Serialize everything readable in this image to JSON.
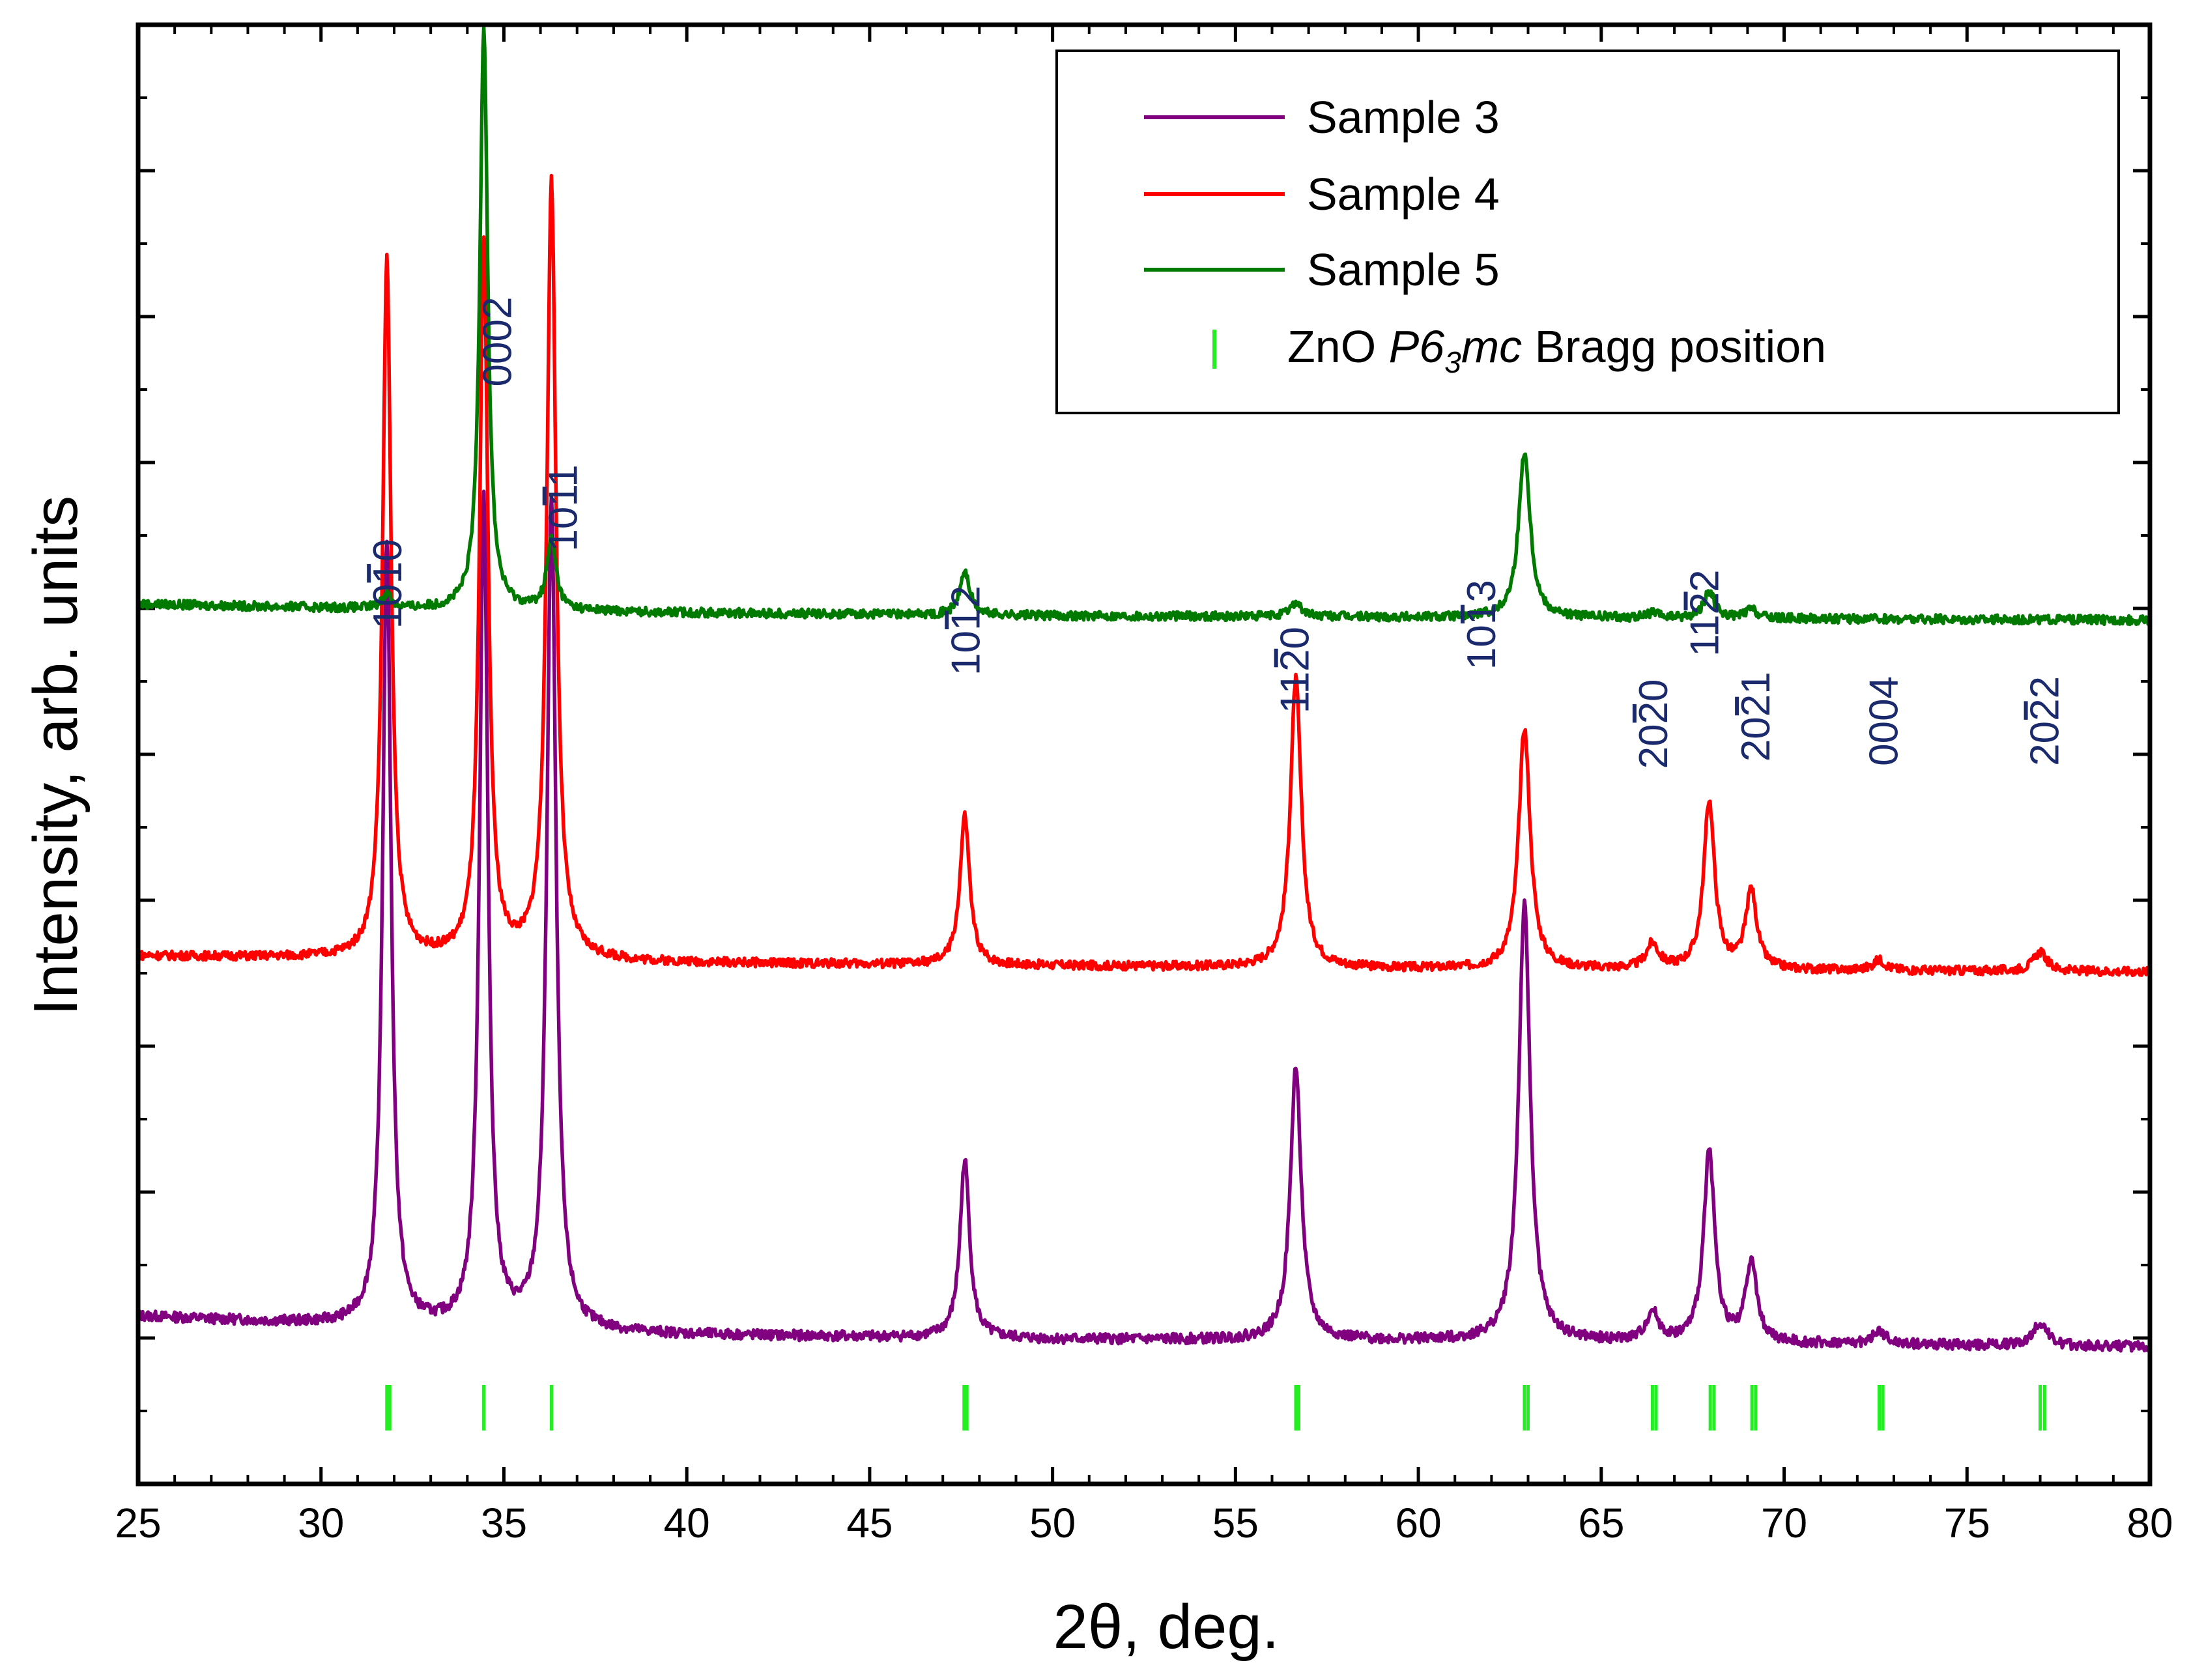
{
  "chart_data": {
    "type": "line",
    "title": "",
    "xlabel": "2θ, deg.",
    "ylabel": "Intensity, arb. units",
    "xlim": [
      25,
      80
    ],
    "ylim": [
      0,
      100
    ],
    "x_ticks": [
      25,
      30,
      35,
      40,
      45,
      50,
      55,
      60,
      65,
      70,
      75,
      80
    ],
    "x_tick_labels": [
      "25",
      "30",
      "35",
      "40",
      "45",
      "50",
      "55",
      "60",
      "65",
      "70",
      "75",
      "80"
    ],
    "y_tick_labels_shown": false,
    "legend_position": "top-right",
    "series": [
      {
        "name": "Sample 3",
        "color": "#800080",
        "baseline": [
          [
            25,
            11.5
          ],
          [
            31,
            10.8
          ],
          [
            33,
            10.6
          ],
          [
            40,
            10.2
          ],
          [
            50,
            9.9
          ],
          [
            60,
            9.8
          ],
          [
            70,
            9.6
          ],
          [
            80,
            9.4
          ]
        ],
        "peaks": [
          {
            "x": 31.8,
            "height": 53.9,
            "width": 0.28
          },
          {
            "x": 34.45,
            "height": 56.9,
            "width": 0.28
          },
          {
            "x": 36.3,
            "height": 56.7,
            "width": 0.3
          },
          {
            "x": 47.6,
            "height": 12.2,
            "width": 0.32
          },
          {
            "x": 56.65,
            "height": 18.7,
            "width": 0.36
          },
          {
            "x": 62.9,
            "height": 29.9,
            "width": 0.38
          },
          {
            "x": 66.4,
            "height": 2.0,
            "width": 0.4
          },
          {
            "x": 67.95,
            "height": 13.2,
            "width": 0.36
          },
          {
            "x": 69.1,
            "height": 5.6,
            "width": 0.36
          },
          {
            "x": 72.6,
            "height": 0.9,
            "width": 0.4
          },
          {
            "x": 77.0,
            "height": 1.6,
            "width": 0.45
          }
        ],
        "noise": 0.35
      },
      {
        "name": "Sample 4",
        "color": "#ff0000",
        "baseline": [
          [
            25,
            36.2
          ],
          [
            31,
            36.0
          ],
          [
            40,
            35.7
          ],
          [
            50,
            35.5
          ],
          [
            60,
            35.3
          ],
          [
            70,
            35.2
          ],
          [
            80,
            35.1
          ]
        ],
        "peaks": [
          {
            "x": 31.8,
            "height": 47.8,
            "width": 0.28
          },
          {
            "x": 34.45,
            "height": 48.8,
            "width": 0.28
          },
          {
            "x": 36.3,
            "height": 53.3,
            "width": 0.3
          },
          {
            "x": 47.6,
            "height": 10.2,
            "width": 0.32
          },
          {
            "x": 56.65,
            "height": 19.8,
            "width": 0.36
          },
          {
            "x": 62.9,
            "height": 16.5,
            "width": 0.38
          },
          {
            "x": 66.4,
            "height": 1.7,
            "width": 0.4
          },
          {
            "x": 67.95,
            "height": 11.5,
            "width": 0.36
          },
          {
            "x": 69.1,
            "height": 5.4,
            "width": 0.36
          },
          {
            "x": 72.6,
            "height": 0.7,
            "width": 0.4
          },
          {
            "x": 77.0,
            "height": 1.3,
            "width": 0.45
          }
        ],
        "noise": 0.3
      },
      {
        "name": "Sample 5",
        "color": "#007a00",
        "baseline": [
          [
            25,
            60.3
          ],
          [
            31,
            60.0
          ],
          [
            40,
            59.7
          ],
          [
            50,
            59.5
          ],
          [
            60,
            59.4
          ],
          [
            70,
            59.3
          ],
          [
            80,
            59.2
          ]
        ],
        "peaks": [
          {
            "x": 31.8,
            "height": 1.0,
            "width": 0.3
          },
          {
            "x": 34.45,
            "height": 40.0,
            "width": 0.26
          },
          {
            "x": 36.3,
            "height": 4.8,
            "width": 0.3
          },
          {
            "x": 47.6,
            "height": 3.0,
            "width": 0.32
          },
          {
            "x": 56.65,
            "height": 1.0,
            "width": 0.36
          },
          {
            "x": 62.9,
            "height": 11.4,
            "width": 0.38
          },
          {
            "x": 66.4,
            "height": 0.3,
            "width": 0.4
          },
          {
            "x": 67.95,
            "height": 1.8,
            "width": 0.36
          },
          {
            "x": 69.1,
            "height": 0.6,
            "width": 0.36
          }
        ],
        "noise": 0.3
      }
    ],
    "bragg_positions": {
      "name": "ZnO P6₃mc Bragg position",
      "color": "#22ee22",
      "ticks": [
        31.8,
        31.88,
        34.45,
        36.3,
        47.58,
        47.66,
        56.65,
        56.73,
        62.9,
        63.0,
        66.4,
        66.5,
        67.98,
        68.08,
        69.12,
        69.22,
        72.6,
        72.7,
        77.0,
        77.12
      ]
    },
    "peak_annotations": [
      {
        "x": 32.2,
        "y": 58.6,
        "label": "1010",
        "bar_index": 2
      },
      {
        "x": 35.2,
        "y": 75.2,
        "label": "0002",
        "bar_index": -1
      },
      {
        "x": 37.0,
        "y": 63.9,
        "label": "1011",
        "bar_index": 2
      },
      {
        "x": 48.0,
        "y": 55.4,
        "label": "1012",
        "bar_index": 2
      },
      {
        "x": 57.0,
        "y": 52.8,
        "label": "1120",
        "bar_index": 2
      },
      {
        "x": 62.1,
        "y": 55.8,
        "label": "1013",
        "bar_index": 2
      },
      {
        "x": 66.8,
        "y": 49.0,
        "label": "2020",
        "bar_index": 2
      },
      {
        "x": 68.2,
        "y": 56.7,
        "label": "1122",
        "bar_index": 2
      },
      {
        "x": 69.6,
        "y": 49.5,
        "label": "2021",
        "bar_index": 2
      },
      {
        "x": 73.1,
        "y": 49.2,
        "label": "0004",
        "bar_index": -1
      },
      {
        "x": 77.5,
        "y": 49.2,
        "label": "2022",
        "bar_index": 2
      }
    ],
    "legend": {
      "entries": [
        "Sample 3",
        "Sample 4",
        "Sample 5"
      ],
      "bragg_entry": {
        "prefix": "ZnO ",
        "italic_main": "P6",
        "italic_sub": "3",
        "italic_after": "mc",
        "suffix": " Bragg position"
      }
    }
  }
}
